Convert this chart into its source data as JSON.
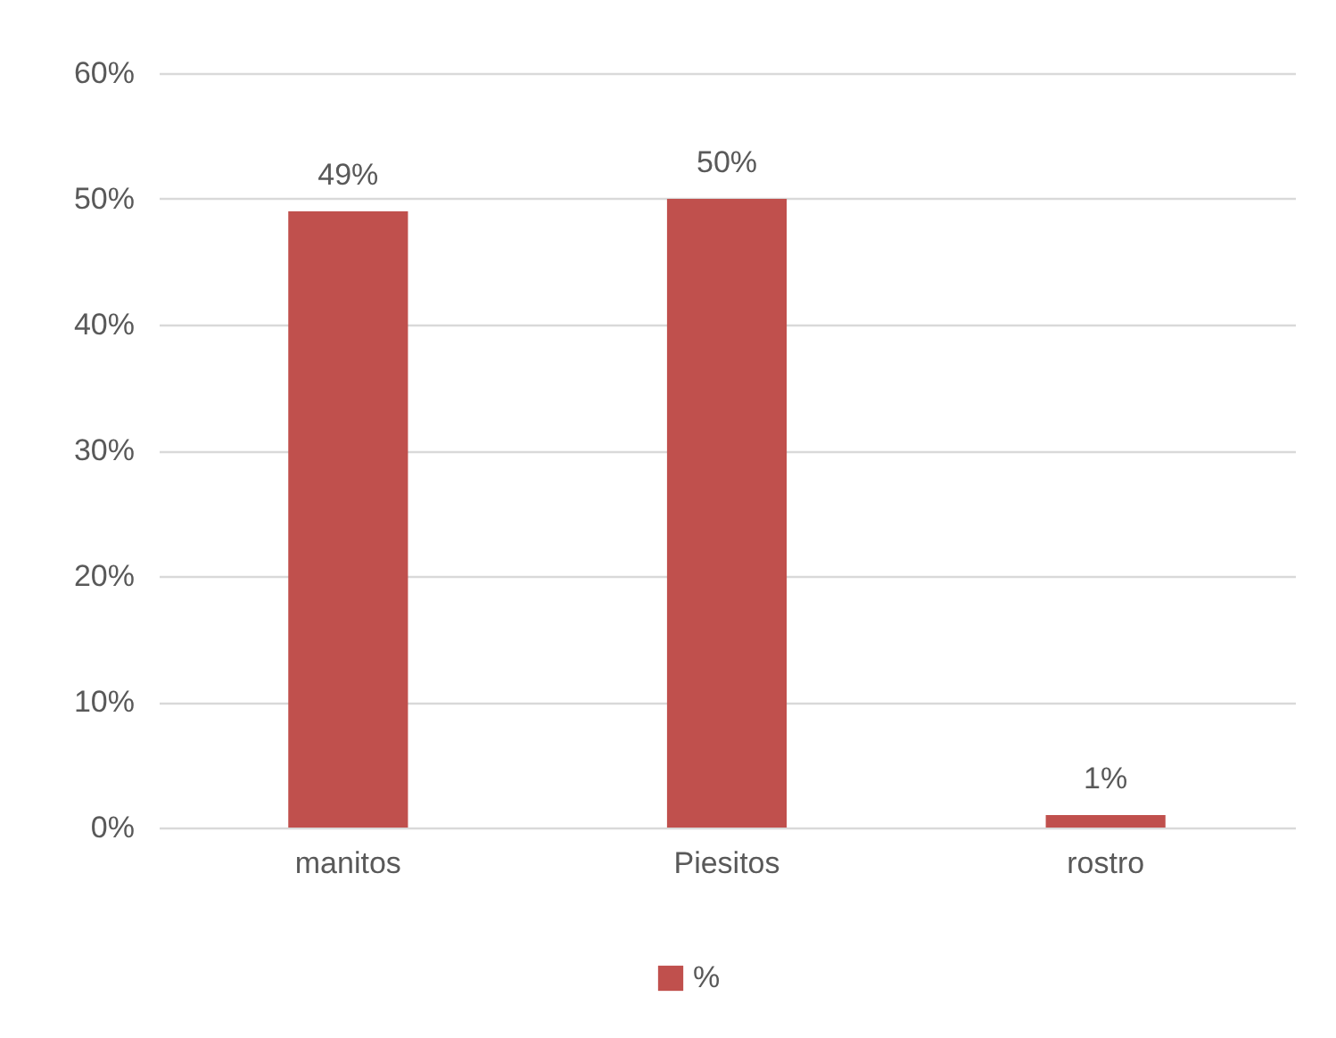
{
  "chart_data": {
    "type": "bar",
    "categories": [
      "manitos",
      "Piesitos",
      "rostro"
    ],
    "series": [
      {
        "name": "%",
        "color": "#c0504d",
        "values": [
          49,
          50,
          1
        ],
        "value_labels": [
          "49%",
          "50%",
          "1%"
        ]
      }
    ],
    "ylim": [
      0,
      60
    ],
    "yticks": [
      {
        "value": 0,
        "label": "0%"
      },
      {
        "value": 10,
        "label": "10%"
      },
      {
        "value": 20,
        "label": "20%"
      },
      {
        "value": 30,
        "label": "30%"
      },
      {
        "value": 40,
        "label": "40%"
      },
      {
        "value": 50,
        "label": "50%"
      },
      {
        "value": 60,
        "label": "60%"
      }
    ],
    "grid": "y",
    "legend": "bottom"
  }
}
